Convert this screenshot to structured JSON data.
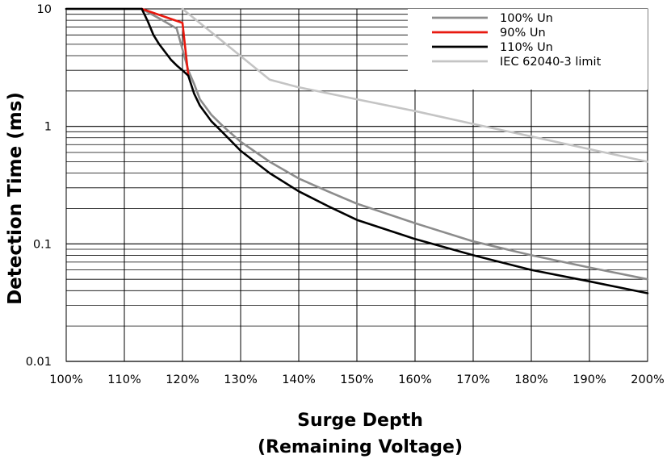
{
  "chart_data": {
    "type": "line",
    "title": "",
    "xlabel": "Surge Depth",
    "xlabel_line2": "(Remaining Voltage)",
    "ylabel": "Detection Time (ms)",
    "x_scale": "linear",
    "y_scale": "log",
    "xlim": [
      100,
      200
    ],
    "ylim": [
      0.01,
      10
    ],
    "x_ticks": [
      100,
      110,
      120,
      130,
      140,
      150,
      160,
      170,
      180,
      190,
      200
    ],
    "x_tick_labels": [
      "100%",
      "110%",
      "120%",
      "130%",
      "140%",
      "150%",
      "160%",
      "170%",
      "180%",
      "190%",
      "200%"
    ],
    "y_ticks": [
      0.01,
      0.1,
      1,
      10
    ],
    "y_tick_labels": [
      "0.01",
      "0.1",
      "1",
      "10"
    ],
    "grid": true,
    "legend_position": "top-right",
    "series": [
      {
        "name": "100% Un",
        "color": "#8c8c8c",
        "points": [
          [
            100,
            10
          ],
          [
            113,
            10
          ],
          [
            116,
            8.3
          ],
          [
            119,
            6.8
          ],
          [
            121,
            3.0
          ],
          [
            122,
            2.3
          ],
          [
            123,
            1.7
          ],
          [
            125,
            1.25
          ],
          [
            127,
            1.0
          ],
          [
            130,
            0.74
          ],
          [
            135,
            0.5
          ],
          [
            140,
            0.36
          ],
          [
            145,
            0.28
          ],
          [
            150,
            0.22
          ],
          [
            160,
            0.15
          ],
          [
            170,
            0.105
          ],
          [
            180,
            0.08
          ],
          [
            190,
            0.063
          ],
          [
            200,
            0.05
          ]
        ]
      },
      {
        "name": "90% Un",
        "color": "#e8190f",
        "points": [
          [
            113,
            10
          ],
          [
            120,
            7.6
          ],
          [
            121,
            2.7
          ]
        ]
      },
      {
        "name": "110% Un",
        "color": "#000000",
        "points": [
          [
            100,
            10
          ],
          [
            113,
            10
          ],
          [
            114,
            7.9
          ],
          [
            115,
            6.0
          ],
          [
            116,
            5.0
          ],
          [
            117,
            4.3
          ],
          [
            118,
            3.7
          ],
          [
            119,
            3.3
          ],
          [
            120,
            3.0
          ],
          [
            121,
            2.7
          ],
          [
            122,
            1.9
          ],
          [
            123,
            1.5
          ],
          [
            125,
            1.1
          ],
          [
            127,
            0.88
          ],
          [
            130,
            0.62
          ],
          [
            135,
            0.4
          ],
          [
            140,
            0.28
          ],
          [
            145,
            0.21
          ],
          [
            150,
            0.16
          ],
          [
            160,
            0.11
          ],
          [
            170,
            0.08
          ],
          [
            180,
            0.06
          ],
          [
            190,
            0.048
          ],
          [
            200,
            0.038
          ]
        ]
      },
      {
        "name": "IEC 62040-3 limit",
        "color": "#c4c4c4",
        "points": [
          [
            120,
            10
          ],
          [
            135,
            2.5
          ],
          [
            140,
            2.15
          ],
          [
            150,
            1.7
          ],
          [
            160,
            1.35
          ],
          [
            170,
            1.05
          ],
          [
            180,
            0.82
          ],
          [
            190,
            0.64
          ],
          [
            200,
            0.5
          ]
        ]
      }
    ]
  }
}
